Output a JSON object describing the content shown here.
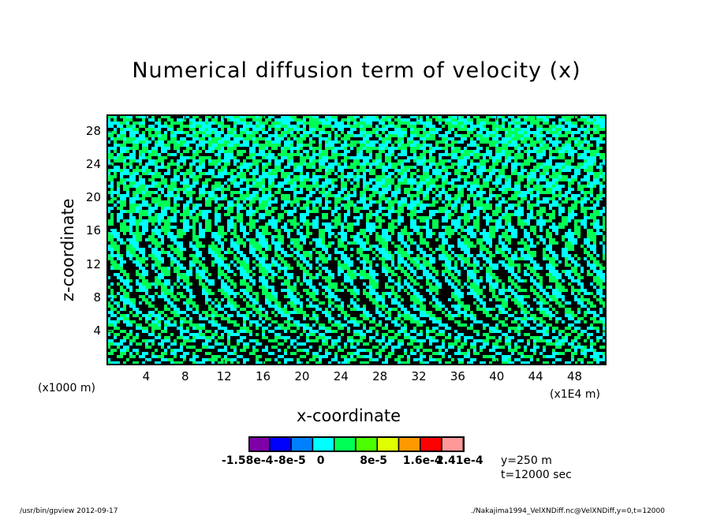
{
  "chart_data": {
    "type": "heatmap",
    "title": "Numerical diffusion term of velocity (x)",
    "xlabel": "x-coordinate",
    "ylabel": "z-coordinate",
    "x_unit": "(x1E4 m)",
    "y_unit": "(x1000 m)",
    "xlim": [
      0,
      51.2
    ],
    "ylim": [
      0,
      30
    ],
    "xticks": [
      4,
      8,
      12,
      16,
      20,
      24,
      28,
      32,
      36,
      40,
      44,
      48
    ],
    "yticks": [
      4,
      8,
      12,
      16,
      20,
      24,
      28
    ],
    "colorbar": {
      "levels": [
        -0.000158,
        -0.00012,
        -8e-05,
        -4e-05,
        0,
        4e-05,
        8e-05,
        0.00012,
        0.00016,
        0.0002,
        0.00024,
        0.000241
      ],
      "colors": [
        "#7f00a8",
        "#0000ff",
        "#0080ff",
        "#00ffff",
        "#00ff55",
        "#4cff00",
        "#e0ff00",
        "#ff9900",
        "#ff0000",
        "#ff9999"
      ],
      "labels": [
        "-1.58e-4",
        "-8e-5",
        "0",
        "8e-5",
        "1.6e-4",
        "2.41e-4"
      ]
    },
    "dominant_colors": [
      "#00ff55",
      "#00ffff",
      "#000000"
    ]
  },
  "info": {
    "y": "y=250 m",
    "t": "t=12000 sec"
  },
  "footer": {
    "left": "/usr/bin/gpview   2012-09-17",
    "right": "./Nakajima1994_VelXNDiff.nc@VelXNDiff,y=0,t=12000"
  }
}
